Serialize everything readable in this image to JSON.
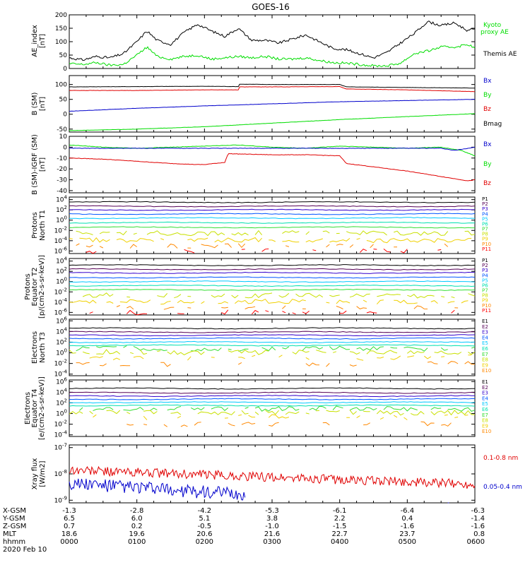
{
  "title": "GOES-16",
  "date": "2020 Feb 10",
  "colors": {
    "black": "#000000",
    "red": "#e00000",
    "green": "#00dd00",
    "blue": "#0000cc",
    "p": [
      "#000000",
      "#550055",
      "#3300cc",
      "#0055ff",
      "#00c8ff",
      "#00e0b0",
      "#33dd33",
      "#c8e000",
      "#f0d000",
      "#ff8800",
      "#ff0000",
      "#cc0000"
    ]
  },
  "chart_data": [
    {
      "type": "line",
      "id": "ae",
      "ylabel": [
        "AE_index",
        "[nT]"
      ],
      "ylim": [
        0,
        200
      ],
      "yticks": [
        "0",
        "50",
        "100",
        "150",
        "200"
      ],
      "legend": [
        {
          "label": "Kyoto",
          "color": "#00dd00"
        },
        {
          "label": "proxy AE",
          "color": "#00dd00"
        },
        {
          "label": "Themis AE",
          "color": "#000000"
        }
      ],
      "series": [
        {
          "name": "Themis AE",
          "color": "#000000",
          "x": [
            0,
            0.2,
            0.4,
            0.6,
            0.8,
            1.0,
            1.15,
            1.3,
            1.5,
            1.7,
            1.9,
            2.1,
            2.3,
            2.5,
            2.7,
            2.9,
            3.1,
            3.3,
            3.5,
            3.7,
            3.9,
            4.1,
            4.3,
            4.5,
            4.7,
            4.9,
            5.1,
            5.3,
            5.5,
            5.7,
            5.9,
            6.0
          ],
          "values": [
            40,
            32,
            45,
            40,
            55,
            100,
            140,
            105,
            90,
            135,
            165,
            140,
            120,
            150,
            105,
            105,
            95,
            110,
            125,
            100,
            75,
            70,
            55,
            40,
            60,
            95,
            130,
            175,
            160,
            170,
            140,
            150
          ]
        },
        {
          "name": "Kyoto proxy AE",
          "color": "#00dd00",
          "x": [
            0,
            0.2,
            0.4,
            0.6,
            0.8,
            1.0,
            1.15,
            1.3,
            1.5,
            1.7,
            1.9,
            2.1,
            2.3,
            2.5,
            2.7,
            2.9,
            3.1,
            3.3,
            3.5,
            3.7,
            3.9,
            4.1,
            4.3,
            4.5,
            4.7,
            4.9,
            5.1,
            5.3,
            5.5,
            5.7,
            5.9,
            6.0
          ],
          "values": [
            18,
            15,
            22,
            12,
            15,
            50,
            80,
            45,
            35,
            45,
            50,
            35,
            40,
            45,
            40,
            45,
            35,
            35,
            40,
            30,
            22,
            20,
            15,
            10,
            10,
            20,
            55,
            65,
            80,
            80,
            90,
            75
          ]
        }
      ]
    },
    {
      "type": "line",
      "id": "bsm",
      "ylabel": [
        "B (SM)",
        "[nT]"
      ],
      "ylim": [
        -60,
        130
      ],
      "yticks": [
        "-50",
        "0",
        "50",
        "100"
      ],
      "ytickvals": [
        -50,
        0,
        50,
        100
      ],
      "legend": [
        {
          "label": "Bx",
          "color": "#0000cc"
        },
        {
          "label": "By",
          "color": "#00dd00"
        },
        {
          "label": "Bz",
          "color": "#e00000"
        },
        {
          "label": "Bmag",
          "color": "#000000"
        }
      ],
      "series": [
        {
          "name": "Bmag",
          "color": "#000000",
          "x": [
            0,
            1,
            2,
            2.5,
            2.52,
            3,
            4,
            4.1,
            5,
            6
          ],
          "values": [
            92,
            93,
            94,
            93,
            101,
            100,
            100,
            92,
            90,
            88
          ]
        },
        {
          "name": "Bz",
          "color": "#e00000",
          "x": [
            0,
            1,
            2,
            2.5,
            2.52,
            3,
            4,
            4.1,
            5,
            6
          ],
          "values": [
            80,
            80,
            82,
            82,
            92,
            92,
            93,
            85,
            82,
            76
          ]
        },
        {
          "name": "Bx",
          "color": "#0000cc",
          "x": [
            0,
            1,
            2,
            3,
            4,
            5,
            6
          ],
          "values": [
            10,
            20,
            28,
            35,
            42,
            46,
            50
          ]
        },
        {
          "name": "By",
          "color": "#00dd00",
          "x": [
            0,
            1,
            2,
            3,
            4,
            5,
            6
          ],
          "values": [
            -55,
            -50,
            -42,
            -30,
            -18,
            -8,
            2
          ]
        }
      ]
    },
    {
      "type": "line",
      "id": "bigrf",
      "ylabel": [
        "B (SM)-IGRF (SM)",
        "[nT]"
      ],
      "ylim": [
        -42,
        10
      ],
      "yticks": [
        "-40",
        "-30",
        "-20",
        "-10",
        "0",
        "10"
      ],
      "ytickvals": [
        -40,
        -30,
        -20,
        -10,
        0,
        10
      ],
      "legend": [
        {
          "label": "Bx",
          "color": "#0000cc"
        },
        {
          "label": "By",
          "color": "#00dd00"
        },
        {
          "label": "Bz",
          "color": "#e00000"
        }
      ],
      "series": [
        {
          "name": "By",
          "color": "#00dd00",
          "x": [
            0,
            0.5,
            1,
            1.5,
            2,
            2.5,
            3,
            3.5,
            4,
            4.5,
            5,
            5.5,
            5.8,
            6.0
          ],
          "values": [
            2,
            0,
            -1,
            0,
            1,
            2,
            0,
            -1,
            1,
            0,
            -1,
            0,
            -3,
            -8
          ]
        },
        {
          "name": "Bx",
          "color": "#0000cc",
          "x": [
            0,
            0.5,
            1,
            1.5,
            2,
            2.5,
            3,
            3.5,
            4,
            4.5,
            5,
            5.5,
            5.7,
            6.0
          ],
          "values": [
            -1,
            -1,
            -1,
            -1,
            -1,
            -1,
            -1,
            -1,
            -1,
            -1,
            -1,
            -1,
            -3,
            0
          ]
        },
        {
          "name": "Bz",
          "color": "#e00000",
          "x": [
            0,
            0.5,
            1,
            1.5,
            1.9,
            2.0,
            2.3,
            2.35,
            3,
            3.5,
            4,
            4.1,
            5,
            5.6,
            5.9,
            6.0
          ],
          "values": [
            -10,
            -11,
            -13,
            -15,
            -16,
            -16,
            -14,
            -6,
            -7,
            -7,
            -8,
            -15,
            -22,
            -28,
            -31,
            -30
          ]
        }
      ]
    },
    {
      "type": "line",
      "id": "p_t1",
      "ylabel": [
        "Protons",
        "North T1"
      ],
      "log": true,
      "ylim": [
        -6.5,
        4.5
      ],
      "yticks": [
        "10-6",
        "10-4",
        "10-2",
        "100",
        "102",
        "104"
      ],
      "ytickvals": [
        -6,
        -4,
        -2,
        0,
        2,
        4
      ],
      "legend": [
        "P1",
        "P2",
        "P3",
        "P4",
        "P5",
        "P6",
        "P7",
        "P8",
        "P9",
        "P10",
        "P11"
      ],
      "levels": [
        3.5,
        2.7,
        2.0,
        1.2,
        0.4,
        -0.5,
        -1.4,
        -2.5,
        -3.9,
        -5.0,
        -6.0
      ]
    },
    {
      "type": "line",
      "id": "p_t2",
      "ylabel": [
        "Protons",
        "Equator T2",
        "[p/(cm2-s-sr-keV)]"
      ],
      "log": true,
      "ylim": [
        -6.5,
        4.5
      ],
      "yticks": [
        "10-6",
        "10-4",
        "10-2",
        "100",
        "102",
        "104"
      ],
      "ytickvals": [
        -6,
        -4,
        -2,
        0,
        2,
        4
      ],
      "legend": [
        "P1",
        "P2",
        "P3",
        "P4",
        "P5",
        "P6",
        "P7",
        "P8",
        "P9",
        "P10",
        "P11"
      ],
      "levels": [
        3.2,
        2.4,
        1.7,
        0.8,
        0.0,
        -0.8,
        -1.6,
        -2.7,
        -3.9,
        -5.0,
        -6.0
      ]
    },
    {
      "type": "line",
      "id": "e_t3",
      "ylabel": [
        "Electrons",
        "North T3"
      ],
      "log": true,
      "ylim": [
        -4.3,
        6.3
      ],
      "yticks": [
        "10-4",
        "10-2",
        "100",
        "102",
        "104",
        "106"
      ],
      "ytickvals": [
        -4,
        -2,
        0,
        2,
        4,
        6
      ],
      "legend": [
        "E1",
        "E2",
        "E3",
        "E4",
        "E5",
        "E6",
        "E7",
        "E8",
        "E9",
        "E10"
      ],
      "levels": [
        4.6,
        3.9,
        3.3,
        2.7,
        2.0,
        1.4,
        0.8,
        0.1,
        -0.9,
        -2.1
      ]
    },
    {
      "type": "line",
      "id": "e_t4",
      "ylabel": [
        "Electrons",
        "Equator T4",
        "[e/(cm2-s-sr-keV)]"
      ],
      "log": true,
      "ylim": [
        -4.3,
        6.3
      ],
      "yticks": [
        "10-4",
        "10-2",
        "100",
        "102",
        "104",
        "106"
      ],
      "ytickvals": [
        -4,
        -2,
        0,
        2,
        4,
        6
      ],
      "legend": [
        "E1",
        "E2",
        "E3",
        "E4",
        "E5",
        "E6",
        "E7",
        "E8",
        "E9",
        "E10"
      ],
      "levels": [
        4.7,
        3.9,
        3.3,
        2.7,
        2.1,
        1.5,
        0.9,
        0.2,
        -0.7,
        -2.0
      ]
    },
    {
      "type": "line",
      "id": "xray",
      "ylabel": [
        "Xray flux",
        "[W/m2]"
      ],
      "log": true,
      "ylim": [
        -9.1,
        -6.9
      ],
      "yticks": [
        "10-9",
        "10-8",
        "10-7"
      ],
      "ytickvals": [
        -9,
        -8,
        -7
      ],
      "legend": [
        {
          "label": "0.1-0.8 nm",
          "color": "#e00000"
        },
        {
          "label": "0.05-0.4 nm",
          "color": "#0000cc"
        }
      ]
    }
  ],
  "xaxis": {
    "rows": [
      {
        "label": "X-GSM",
        "values": [
          "-1.3",
          "-2.8",
          "-4.2",
          "-5.3",
          "-6.1",
          "-6.4",
          "-6.3"
        ]
      },
      {
        "label": "Y-GSM",
        "values": [
          "6.5",
          "6.0",
          "5.1",
          "3.8",
          "2.2",
          "0.4",
          "-1.4"
        ]
      },
      {
        "label": "Z-GSM",
        "values": [
          "0.7",
          "0.2",
          "-0.5",
          "-1.0",
          "-1.5",
          "-1.6",
          "-1.6"
        ]
      },
      {
        "label": "MLT",
        "values": [
          "18.6",
          "19.6",
          "20.6",
          "21.6",
          "22.7",
          "23.7",
          "0.8"
        ]
      },
      {
        "label": "hhmm",
        "values": [
          "0000",
          "0100",
          "0200",
          "0300",
          "0400",
          "0500",
          "0600"
        ]
      }
    ]
  }
}
